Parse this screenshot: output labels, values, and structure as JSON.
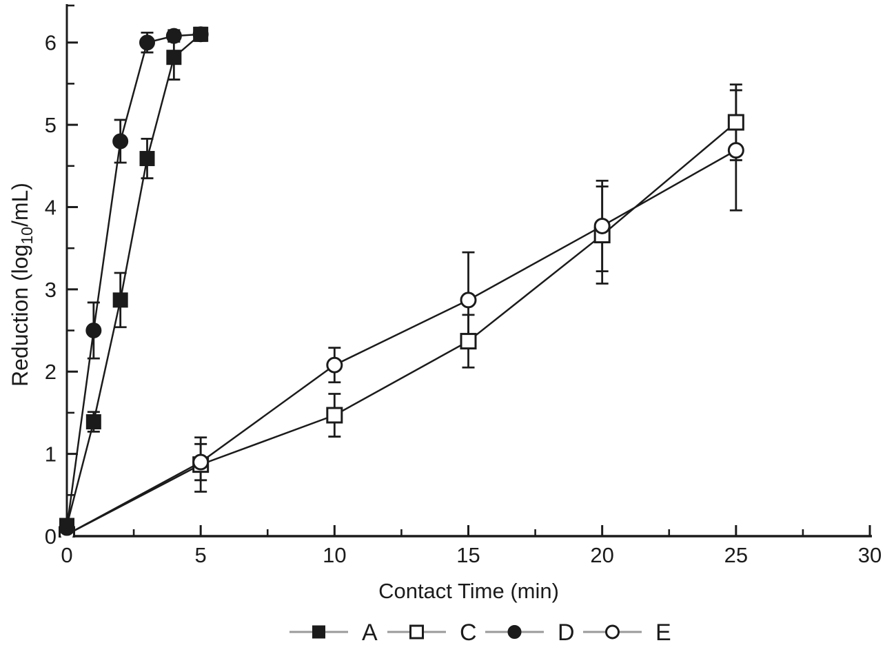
{
  "figure": {
    "background": "#ffffff",
    "ink_color": "#1b1b1b",
    "legend_line_color": "#9a9a9a"
  },
  "chart_data": {
    "type": "line",
    "title": "",
    "xlabel": "Contact Time (min)",
    "ylabel": "Reduction (log10/mL)",
    "ylabel_parts": {
      "prefix": "Reduction (log",
      "subscript": "10",
      "suffix": "/mL)"
    },
    "xlim": [
      0,
      30
    ],
    "ylim": [
      0,
      6.45
    ],
    "x_major_ticks": [
      0,
      5,
      10,
      15,
      20,
      25,
      30
    ],
    "x_minor_ticks": [
      2.5,
      7.5,
      12.5,
      17.5,
      22.5,
      27.5
    ],
    "y_major_ticks": [
      0,
      1,
      2,
      3,
      4,
      5,
      6
    ],
    "y_minor_ticks": [
      0.5,
      1.5,
      2.5,
      3.5,
      4.5,
      5.5,
      6.45
    ],
    "grid": false,
    "error_bars": true,
    "legend_position": "bottom-center",
    "series": [
      {
        "name": "A",
        "marker": "filled-square",
        "points": [
          {
            "x": 0,
            "y": 0.13,
            "err": 0
          },
          {
            "x": 1,
            "y": 1.39,
            "err": 0.12
          },
          {
            "x": 2,
            "y": 2.87,
            "err": 0.33
          },
          {
            "x": 3,
            "y": 4.59,
            "err": 0.24
          },
          {
            "x": 4,
            "y": 5.82,
            "err": 0.27
          },
          {
            "x": 5,
            "y": 6.1,
            "err": 0.08
          }
        ]
      },
      {
        "name": "C",
        "marker": "open-square",
        "points": [
          {
            "x": 0,
            "y": 0.02,
            "err": 0
          },
          {
            "x": 5,
            "y": 0.87,
            "err": 0.33
          },
          {
            "x": 10,
            "y": 1.47,
            "err": 0.26
          },
          {
            "x": 15,
            "y": 2.37,
            "err": 0.32
          },
          {
            "x": 20,
            "y": 3.66,
            "err": 0.59
          },
          {
            "x": 25,
            "y": 5.03,
            "err": 0.46
          }
        ]
      },
      {
        "name": "D",
        "marker": "filled-circle",
        "points": [
          {
            "x": 0,
            "y": 0.1,
            "err": 0
          },
          {
            "x": 1,
            "y": 2.5,
            "err": 0.34
          },
          {
            "x": 2,
            "y": 4.8,
            "err": 0.26
          },
          {
            "x": 3,
            "y": 6.0,
            "err": 0.12
          },
          {
            "x": 4,
            "y": 6.08,
            "err": 0.07
          },
          {
            "x": 5,
            "y": 6.1,
            "err": 0.05
          }
        ]
      },
      {
        "name": "E",
        "marker": "open-circle",
        "points": [
          {
            "x": 0,
            "y": 0.02,
            "err": 0
          },
          {
            "x": 5,
            "y": 0.9,
            "err": 0.22
          },
          {
            "x": 10,
            "y": 2.08,
            "err": 0.21
          },
          {
            "x": 15,
            "y": 2.87,
            "err": 0.58
          },
          {
            "x": 20,
            "y": 3.77,
            "err": 0.55
          },
          {
            "x": 25,
            "y": 4.69,
            "err": 0.73
          }
        ]
      }
    ]
  },
  "legend": {
    "items": [
      {
        "label": "A",
        "marker": "filled-square"
      },
      {
        "label": "C",
        "marker": "open-square"
      },
      {
        "label": "D",
        "marker": "filled-circle"
      },
      {
        "label": "E",
        "marker": "open-circle"
      }
    ]
  }
}
